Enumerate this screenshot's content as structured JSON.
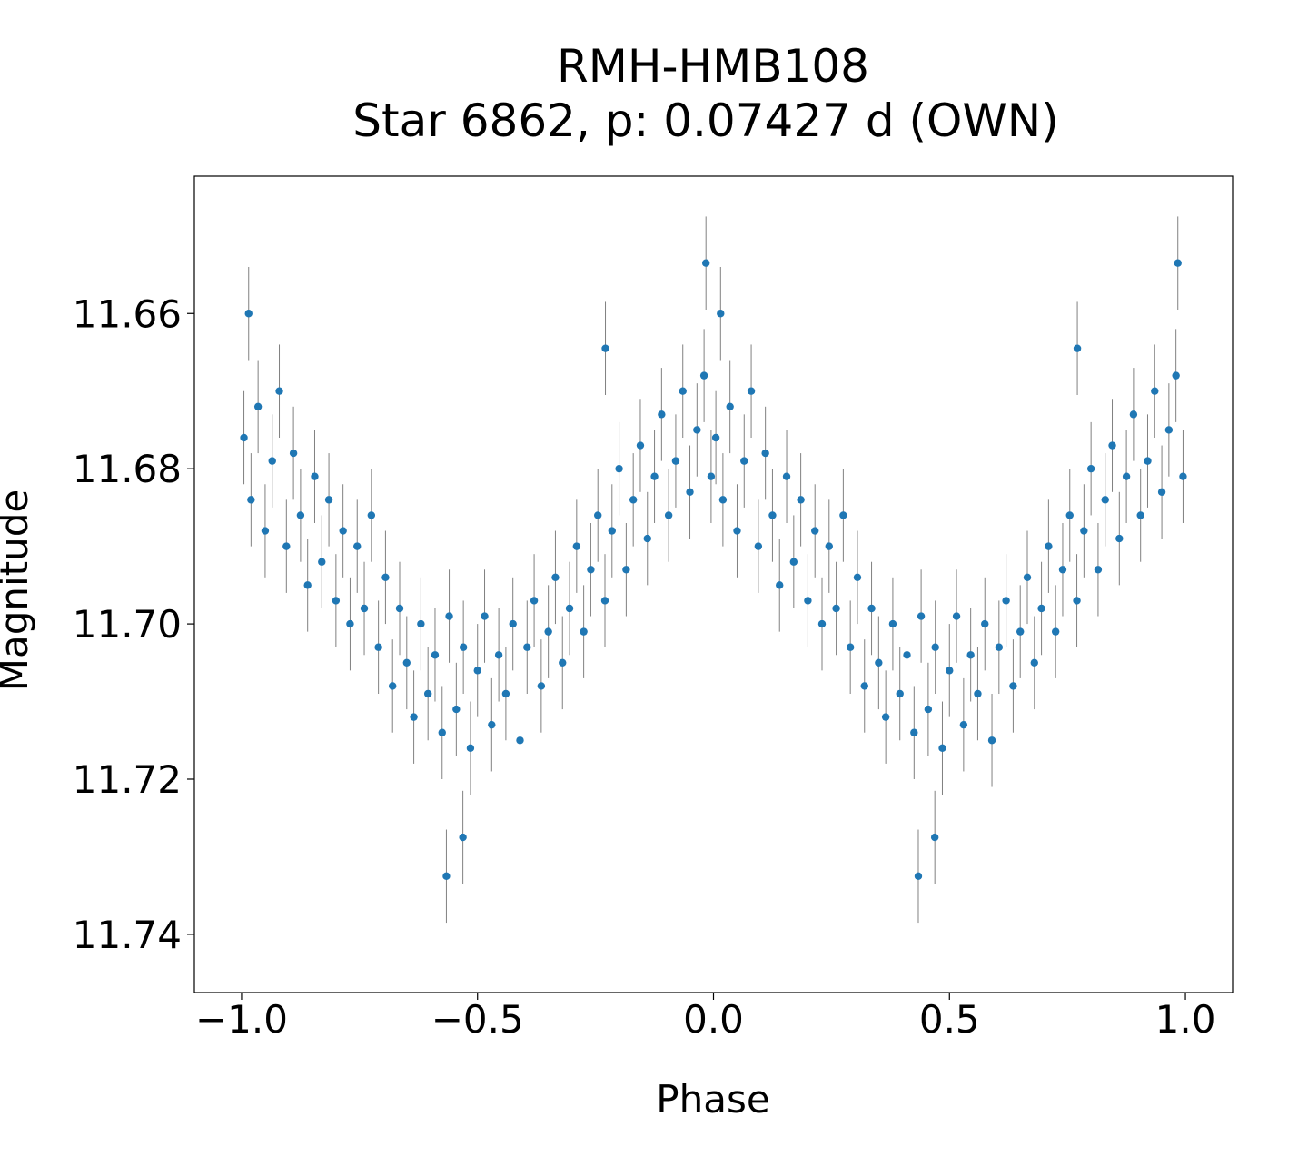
{
  "chart_data": {
    "type": "scatter",
    "title": "RMH-HMB108",
    "subtitle": "Star 6862, p: 0.07427 d (OWN)",
    "xlabel": "Phase",
    "ylabel": "Magnitude",
    "xlim": [
      -1.1,
      1.1
    ],
    "ylim": [
      11.7475,
      11.6423
    ],
    "y_inverted": true,
    "grid": false,
    "x_ticks": [
      "−1.0",
      "−0.5",
      "0.0",
      "0.5",
      "1.0"
    ],
    "x_tick_values": [
      -1.0,
      -0.5,
      0.0,
      0.5,
      1.0
    ],
    "y_ticks": [
      "11.66",
      "11.68",
      "11.70",
      "11.72",
      "11.74"
    ],
    "y_tick_values": [
      11.66,
      11.68,
      11.7,
      11.72,
      11.74
    ],
    "point_color": "#1f77b4",
    "errorbar_color": "#808080",
    "yerr": 0.006,
    "phase_repeated_at_minus_one": true,
    "points": [
      [
        0.005,
        11.676
      ],
      [
        0.015,
        11.66
      ],
      [
        0.02,
        11.684
      ],
      [
        0.035,
        11.672
      ],
      [
        0.05,
        11.688
      ],
      [
        0.065,
        11.679
      ],
      [
        0.08,
        11.67
      ],
      [
        0.095,
        11.69
      ],
      [
        0.11,
        11.678
      ],
      [
        0.125,
        11.686
      ],
      [
        0.14,
        11.695
      ],
      [
        0.155,
        11.681
      ],
      [
        0.17,
        11.692
      ],
      [
        0.185,
        11.684
      ],
      [
        0.2,
        11.697
      ],
      [
        0.215,
        11.688
      ],
      [
        0.23,
        11.7
      ],
      [
        0.245,
        11.69
      ],
      [
        0.26,
        11.698
      ],
      [
        0.275,
        11.686
      ],
      [
        0.29,
        11.703
      ],
      [
        0.305,
        11.694
      ],
      [
        0.32,
        11.708
      ],
      [
        0.335,
        11.698
      ],
      [
        0.35,
        11.705
      ],
      [
        0.365,
        11.712
      ],
      [
        0.38,
        11.7
      ],
      [
        0.395,
        11.709
      ],
      [
        0.41,
        11.704
      ],
      [
        0.425,
        11.714
      ],
      [
        0.434,
        11.7325
      ],
      [
        0.44,
        11.699
      ],
      [
        0.455,
        11.711
      ],
      [
        0.469,
        11.7275
      ],
      [
        0.47,
        11.703
      ],
      [
        0.485,
        11.716
      ],
      [
        0.5,
        11.706
      ],
      [
        0.515,
        11.699
      ],
      [
        0.53,
        11.713
      ],
      [
        0.545,
        11.704
      ],
      [
        0.56,
        11.709
      ],
      [
        0.575,
        11.7
      ],
      [
        0.59,
        11.715
      ],
      [
        0.605,
        11.703
      ],
      [
        0.62,
        11.697
      ],
      [
        0.635,
        11.708
      ],
      [
        0.65,
        11.701
      ],
      [
        0.665,
        11.694
      ],
      [
        0.68,
        11.705
      ],
      [
        0.695,
        11.698
      ],
      [
        0.71,
        11.69
      ],
      [
        0.725,
        11.701
      ],
      [
        0.74,
        11.693
      ],
      [
        0.755,
        11.686
      ],
      [
        0.77,
        11.697
      ],
      [
        0.771,
        11.6645
      ],
      [
        0.785,
        11.688
      ],
      [
        0.8,
        11.68
      ],
      [
        0.815,
        11.693
      ],
      [
        0.83,
        11.684
      ],
      [
        0.845,
        11.677
      ],
      [
        0.86,
        11.689
      ],
      [
        0.875,
        11.681
      ],
      [
        0.89,
        11.673
      ],
      [
        0.905,
        11.686
      ],
      [
        0.92,
        11.679
      ],
      [
        0.935,
        11.67
      ],
      [
        0.95,
        11.683
      ],
      [
        0.965,
        11.675
      ],
      [
        0.98,
        11.668
      ],
      [
        0.984,
        11.6535
      ],
      [
        0.995,
        11.681
      ]
    ]
  }
}
